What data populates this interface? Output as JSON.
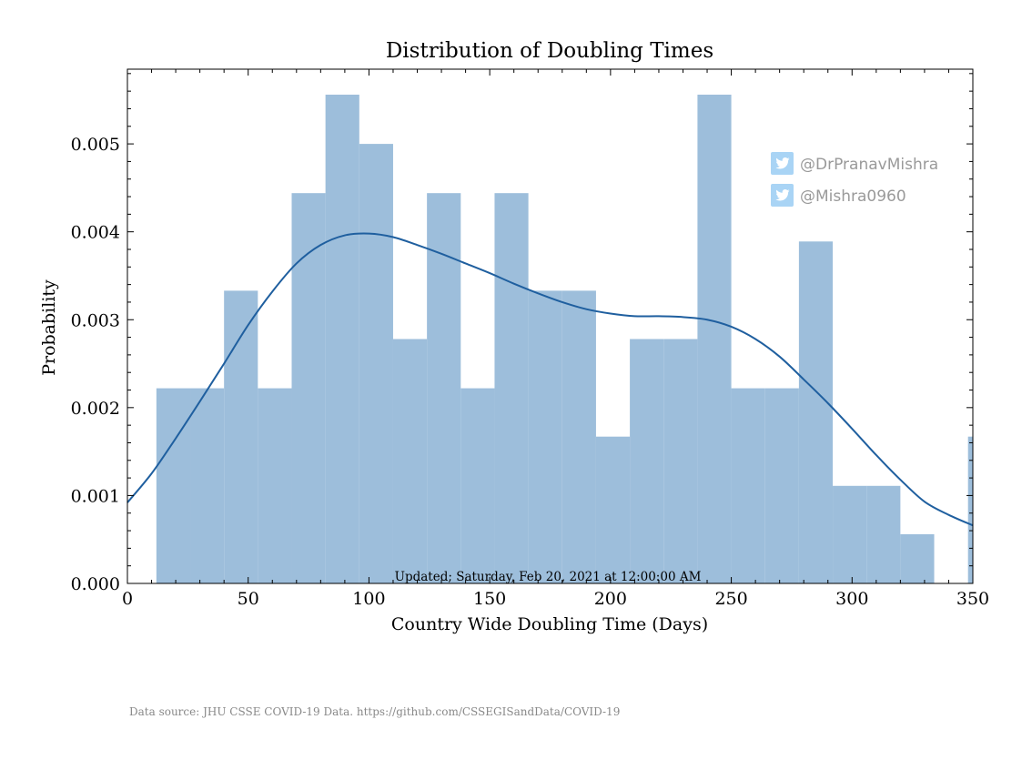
{
  "chart_data": {
    "type": "bar",
    "title": "Distribution of Doubling Times",
    "xlabel": "Country Wide Doubling Time (Days)",
    "ylabel": "Probability",
    "xlim": [
      0,
      350
    ],
    "ylim": [
      0,
      0.00585
    ],
    "xticks": [
      0,
      50,
      100,
      150,
      200,
      250,
      300,
      350
    ],
    "xtick_labels": [
      "0",
      "50",
      "100",
      "150",
      "200",
      "250",
      "300",
      "350"
    ],
    "yticks": [
      0,
      0.001,
      0.002,
      0.003,
      0.004,
      0.005
    ],
    "ytick_labels": [
      "0.000",
      "0.001",
      "0.002",
      "0.003",
      "0.004",
      "0.005"
    ],
    "grid": false,
    "bar_color": "#9dbedb",
    "line_color": "#1f5f9f",
    "bins": [
      {
        "x0": 12,
        "x1": 26,
        "value": 0.00222
      },
      {
        "x0": 26,
        "x1": 40,
        "value": 0.00222
      },
      {
        "x0": 40,
        "x1": 54,
        "value": 0.00333
      },
      {
        "x0": 54,
        "x1": 68,
        "value": 0.00222
      },
      {
        "x0": 68,
        "x1": 82,
        "value": 0.00444
      },
      {
        "x0": 82,
        "x1": 96,
        "value": 0.00556
      },
      {
        "x0": 96,
        "x1": 110,
        "value": 0.005
      },
      {
        "x0": 110,
        "x1": 124,
        "value": 0.00278
      },
      {
        "x0": 124,
        "x1": 138,
        "value": 0.00444
      },
      {
        "x0": 138,
        "x1": 152,
        "value": 0.00222
      },
      {
        "x0": 152,
        "x1": 166,
        "value": 0.00444
      },
      {
        "x0": 166,
        "x1": 180,
        "value": 0.00333
      },
      {
        "x0": 180,
        "x1": 194,
        "value": 0.00333
      },
      {
        "x0": 194,
        "x1": 208,
        "value": 0.00167
      },
      {
        "x0": 208,
        "x1": 222,
        "value": 0.00278
      },
      {
        "x0": 222,
        "x1": 236,
        "value": 0.00278
      },
      {
        "x0": 236,
        "x1": 250,
        "value": 0.00556
      },
      {
        "x0": 250,
        "x1": 264,
        "value": 0.00222
      },
      {
        "x0": 264,
        "x1": 278,
        "value": 0.00222
      },
      {
        "x0": 278,
        "x1": 292,
        "value": 0.00389
      },
      {
        "x0": 292,
        "x1": 306,
        "value": 0.00111
      },
      {
        "x0": 306,
        "x1": 320,
        "value": 0.00111
      },
      {
        "x0": 320,
        "x1": 334,
        "value": 0.00056
      },
      {
        "x0": 348,
        "x1": 362,
        "value": 0.00167
      }
    ],
    "kde": {
      "x": [
        0,
        10,
        20,
        30,
        40,
        50,
        60,
        70,
        80,
        90,
        100,
        110,
        120,
        130,
        140,
        150,
        160,
        170,
        180,
        190,
        200,
        210,
        220,
        230,
        240,
        250,
        260,
        270,
        280,
        290,
        300,
        310,
        320,
        330,
        340,
        350
      ],
      "y": [
        0.00092,
        0.00125,
        0.00165,
        0.00207,
        0.0025,
        0.00294,
        0.00332,
        0.00364,
        0.00385,
        0.00396,
        0.00398,
        0.00394,
        0.00385,
        0.00375,
        0.00364,
        0.00353,
        0.00341,
        0.0033,
        0.0032,
        0.00312,
        0.00307,
        0.00304,
        0.00304,
        0.00303,
        0.003,
        0.00292,
        0.00278,
        0.00258,
        0.00232,
        0.00205,
        0.00176,
        0.00146,
        0.00118,
        0.00093,
        0.00078,
        0.00066
      ]
    },
    "annotation": "Updated; Saturday, Feb 20, 2021 at 12:00:00 AM"
  },
  "watermark": {
    "handles": [
      "@DrPranavMishra",
      "@Mishra0960"
    ],
    "icon": "twitter-bird-icon",
    "icon_bg": "#a9d4f5",
    "text_color": "#9a9a9a"
  },
  "footer": {
    "source": "Data source: JHU CSSE COVID-19 Data. https://github.com/CSSEGISandData/COVID-19"
  }
}
